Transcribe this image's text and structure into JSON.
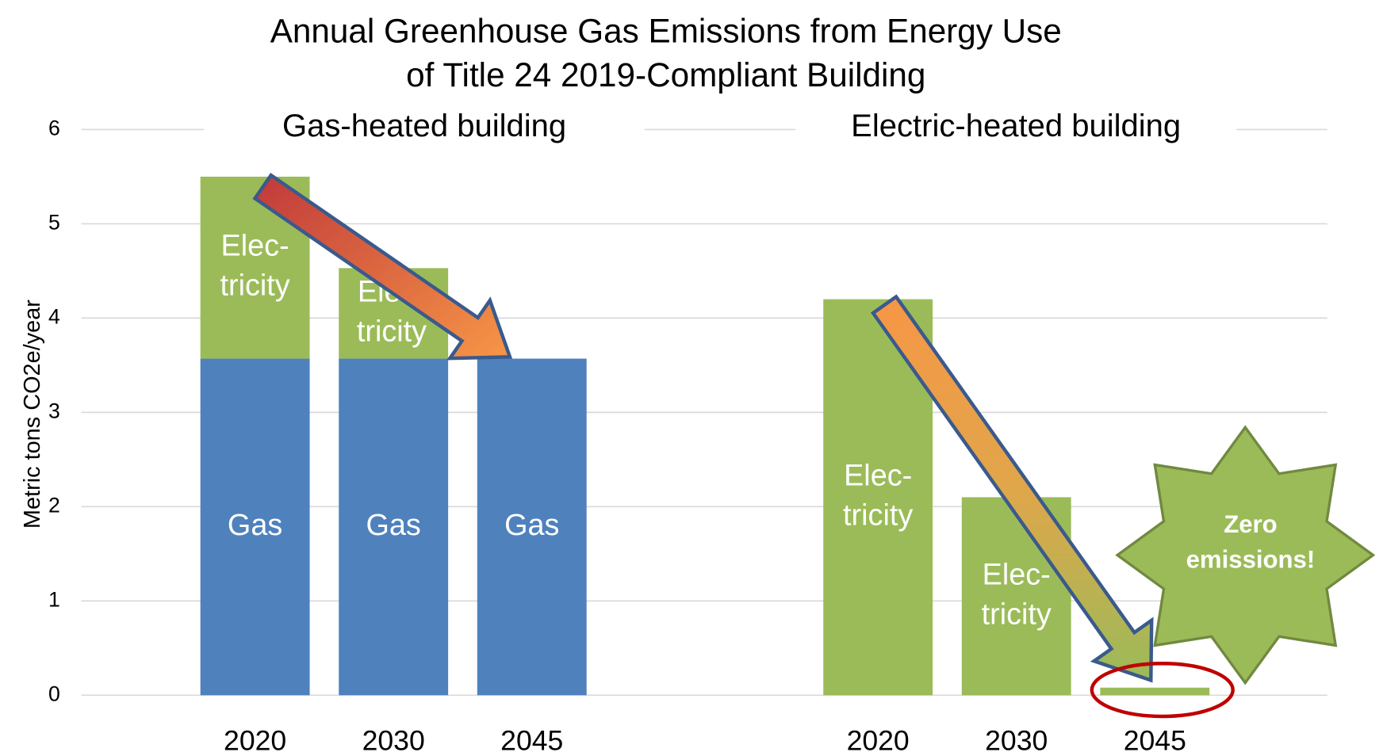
{
  "chart_data": {
    "type": "stacked_bar",
    "title": [
      "Annual Greenhouse Gas Emissions from Energy Use",
      "of Title 24 2019-Compliant Building"
    ],
    "y_label": "Metric tons CO2e/year",
    "groups": [
      "Gas-heated building",
      "Electric-heated building"
    ],
    "categories": [
      "2020",
      "2030",
      "2045",
      "2020",
      "2030",
      "2045"
    ],
    "series": [
      {
        "name": "Gas",
        "color": "#4f81bd",
        "values": [
          3.57,
          3.57,
          3.57,
          null,
          null,
          null
        ],
        "labels": [
          [
            "Gas"
          ],
          [
            "Gas"
          ],
          [
            "Gas"
          ],
          null,
          null,
          null
        ]
      },
      {
        "name": "Electricity",
        "color": "#9bbb59",
        "values": [
          1.93,
          0.96,
          null,
          4.2,
          2.1,
          0.08
        ],
        "labels": [
          [
            "Elec-",
            "tricity"
          ],
          [
            "Elec-",
            "tricity"
          ],
          null,
          [
            "Elec-",
            "tricity"
          ],
          [
            "Elec-",
            "tricity"
          ],
          null
        ]
      }
    ],
    "annotation": [
      "Zero",
      "emissions!"
    ],
    "ylim": [
      0,
      6
    ],
    "yticks": [
      0,
      1,
      2,
      3,
      4,
      5,
      6
    ],
    "grid": true
  }
}
